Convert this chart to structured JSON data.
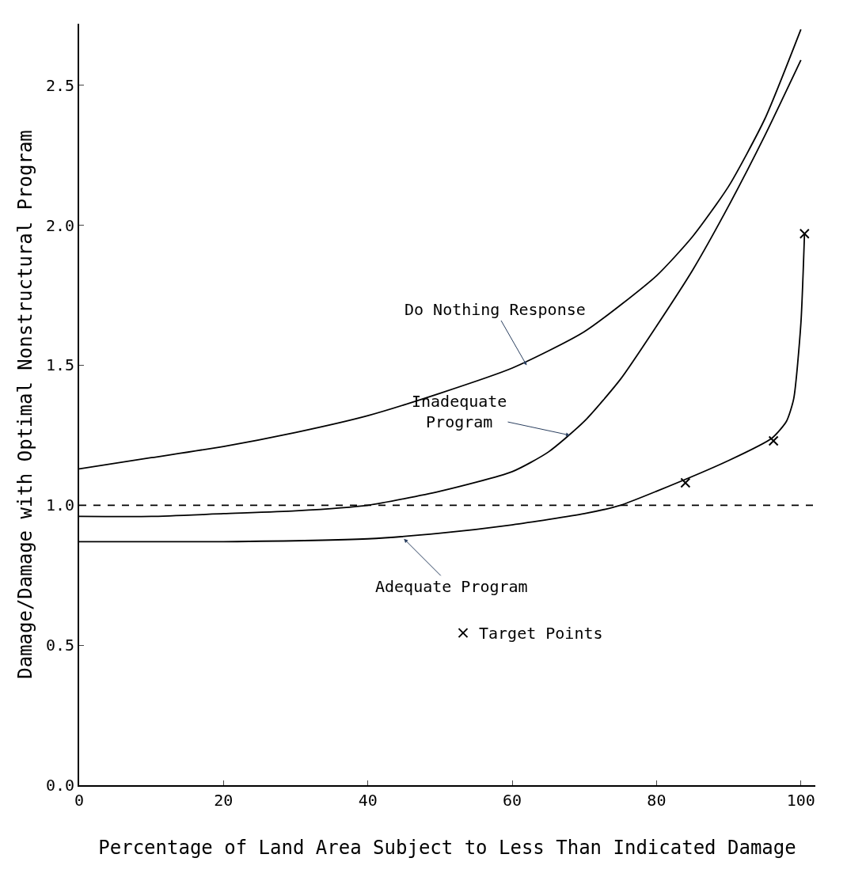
{
  "chart_data": {
    "type": "line",
    "xlabel": "Percentage of Land Area Subject to Less Than Indicated Damage",
    "ylabel": "Damage/Damage with Optimal Nonstructural Program",
    "xlim": [
      0,
      102
    ],
    "ylim": [
      0,
      2.72
    ],
    "xticks": [
      0,
      20,
      40,
      60,
      80,
      100
    ],
    "yticks": [
      {
        "value": 0,
        "label": "0.0"
      },
      {
        "value": 0.5,
        "label": "0.5"
      },
      {
        "value": 1,
        "label": "1.0"
      },
      {
        "value": 1.5,
        "label": "1.5"
      },
      {
        "value": 2,
        "label": "2.0"
      },
      {
        "value": 2.5,
        "label": "2.5"
      }
    ],
    "legend": "bottom",
    "line_style": "solid",
    "marker": "none",
    "series": [
      {
        "color": "#000000",
        "x": [
          0,
          10,
          20,
          30,
          40,
          50,
          60,
          70,
          80,
          85,
          90,
          95,
          100
        ],
        "values": [
          1.13,
          1.17,
          1.21,
          1.26,
          1.32,
          1.4,
          1.49,
          1.62,
          1.82,
          1.96,
          2.14,
          2.38,
          2.7
        ]
      },
      {
        "color": "#000000",
        "x": [
          0,
          10,
          20,
          30,
          40,
          50,
          60,
          65,
          70,
          75,
          80,
          85,
          90,
          95,
          100
        ],
        "values": [
          0.96,
          0.96,
          0.97,
          0.98,
          1.0,
          1.05,
          1.12,
          1.19,
          1.3,
          1.45,
          1.64,
          1.84,
          2.07,
          2.32,
          2.59
        ]
      },
      {
        "color": "#000000",
        "x": [
          0,
          20,
          40,
          50,
          60,
          70,
          75,
          80,
          90,
          96,
          98,
          99,
          100,
          100.5
        ],
        "values": [
          0.87,
          0.87,
          0.88,
          0.9,
          0.93,
          0.97,
          1.0,
          1.05,
          1.16,
          1.24,
          1.3,
          1.38,
          1.65,
          1.97
        ]
      },
      {
        "type": "scatter",
        "name": "Target Points",
        "marker": "cross",
        "color": "#000000",
        "x": [
          84,
          96.2,
          100.5
        ],
        "values": [
          1.08,
          1.23,
          1.97
        ]
      }
    ],
    "ref_lines": [
      {
        "axis": "y",
        "value": 1.0,
        "line_style": "dashed",
        "color": "#000000"
      }
    ],
    "annotations": [
      {
        "text": "Do Nothing Response",
        "x": 62,
        "y": 1.5
      },
      {
        "text": "Inadequate\nProgram",
        "x": 68,
        "y": 1.25
      },
      {
        "text": "Adequate Program",
        "x": 45,
        "y": 0.88
      }
    ]
  }
}
